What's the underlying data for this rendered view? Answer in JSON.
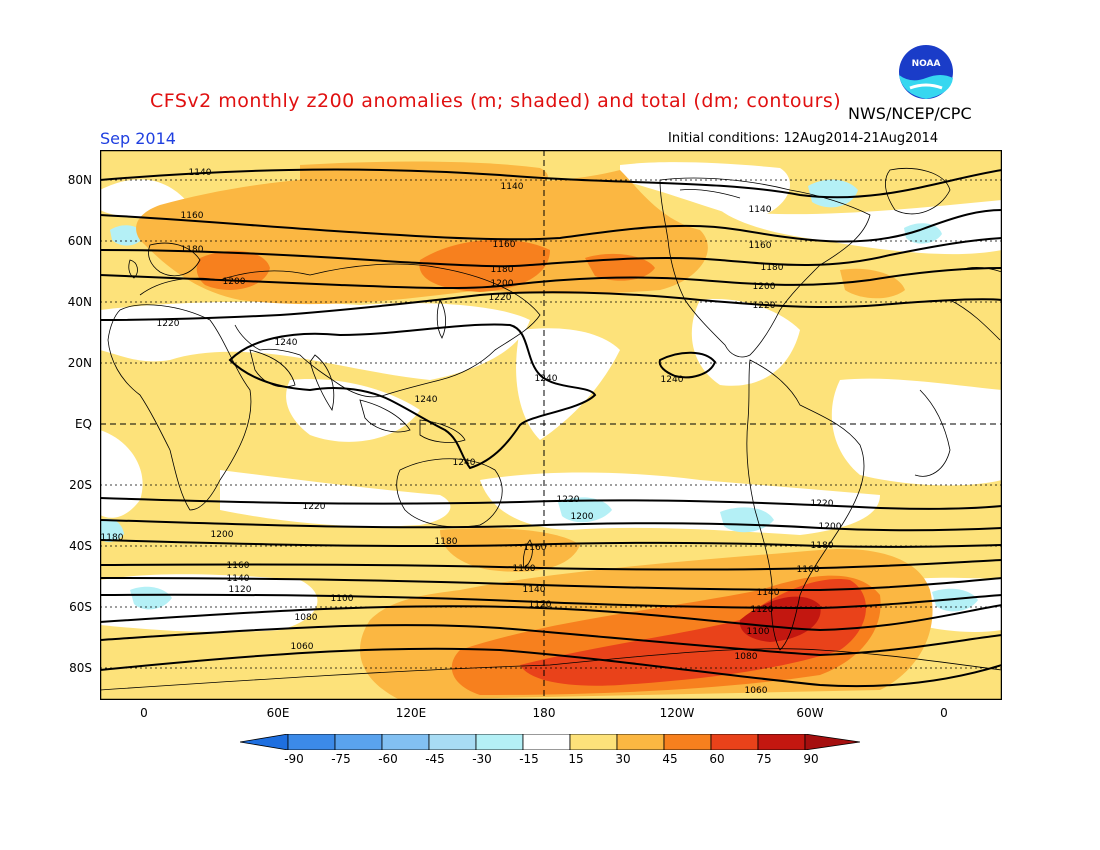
{
  "header": {
    "title": "CFSv2 monthly z200 anomalies (m; shaded) and total (dm; contours)",
    "agency": "NWS/NCEP/CPC",
    "month": "Sep 2014",
    "initial_conditions": "Initial conditions: 12Aug2014-21Aug2014",
    "logo_text": "NOAA"
  },
  "map": {
    "lat_labels": [
      "80N",
      "60N",
      "40N",
      "20N",
      "EQ",
      "20S",
      "40S",
      "60S",
      "80S"
    ],
    "lon_labels": [
      "0",
      "60E",
      "120E",
      "180",
      "120W",
      "60W",
      "0"
    ],
    "contour_labels": [
      "1140",
      "1140",
      "1140",
      "1160",
      "1160",
      "1160",
      "1160",
      "1180",
      "1180",
      "1180",
      "1200",
      "1200",
      "1200",
      "1220",
      "1220",
      "1220",
      "1240",
      "1240",
      "1240",
      "1240",
      "1240",
      "1220",
      "1220",
      "1220",
      "1200",
      "1200",
      "1200",
      "1180",
      "1180",
      "1180",
      "1160",
      "1160",
      "1160",
      "1140",
      "1140",
      "1140",
      "1120",
      "1120",
      "1120",
      "1100",
      "1100",
      "1080",
      "1080",
      "1060",
      "1060"
    ],
    "colors": {
      "frame": "#000000",
      "contour": "#000000",
      "coast": "#000000",
      "pos_15_30": "#fde27a",
      "pos_30_45": "#fbb742",
      "pos_45_60": "#f7801e",
      "pos_60_75": "#e9421a",
      "pos_75_90": "#c31710",
      "neg_15_30": "#b4f0f6"
    }
  },
  "colorbar": {
    "labels": [
      "-90",
      "-75",
      "-60",
      "-45",
      "-30",
      "-15",
      "15",
      "30",
      "45",
      "60",
      "75",
      "90"
    ],
    "colors": [
      "#1e6fe0",
      "#3c8ae8",
      "#5aa3ee",
      "#82c0f2",
      "#b4f0f6",
      "#ffffff",
      "#fde27a",
      "#fbb742",
      "#f7801e",
      "#e9421a",
      "#c31710",
      "#a50f0f",
      "#8c0a0a"
    ]
  }
}
